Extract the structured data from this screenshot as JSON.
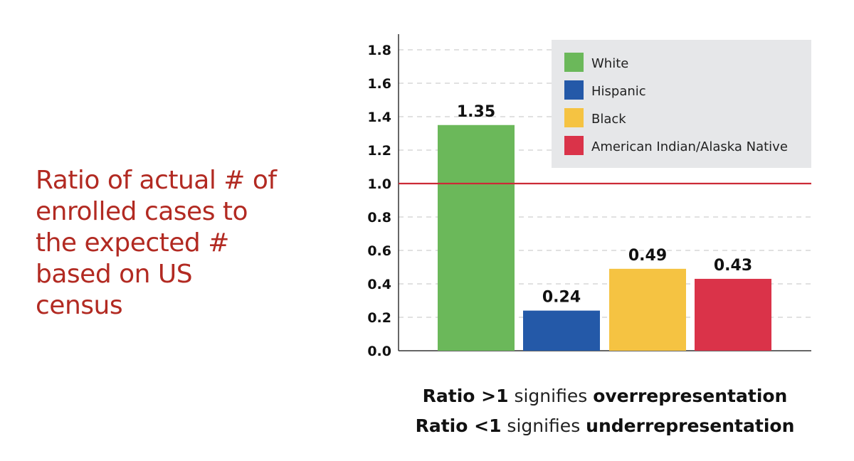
{
  "side_title": "Ratio of actual # of\nenrolled cases to\nthe expected #\nbased on US\ncensus",
  "notes": [
    {
      "bold1": "Ratio >1",
      "plain": " signifies ",
      "bold2": "overrepresentation"
    },
    {
      "bold1": "Ratio <1",
      "plain": " signifies ",
      "bold2": "underrepresentation"
    }
  ],
  "chart_data": {
    "type": "bar",
    "categories": [
      "White",
      "Hispanic",
      "Black",
      "American Indian/Alaska Native"
    ],
    "values": [
      1.35,
      0.24,
      0.49,
      0.43
    ],
    "value_labels": [
      "1.35",
      "0.24",
      "0.49",
      "0.43"
    ],
    "colors": [
      "#6bb85a",
      "#2459a8",
      "#f5c342",
      "#da3349"
    ],
    "yticks": [
      "0.0",
      "0.2",
      "0.4",
      "0.6",
      "0.8",
      "1.0",
      "1.2",
      "1.4",
      "1.6",
      "1.8"
    ],
    "ylim": [
      0,
      1.9
    ],
    "reference_line": {
      "value": 1.0,
      "color": "#cc2a36"
    },
    "legend": {
      "placement": "top-right",
      "entries": [
        "White",
        "Hispanic",
        "Black",
        "American Indian/Alaska Native"
      ]
    },
    "grid": "dashed horizontal",
    "title": "",
    "xlabel": "",
    "ylabel": ""
  }
}
